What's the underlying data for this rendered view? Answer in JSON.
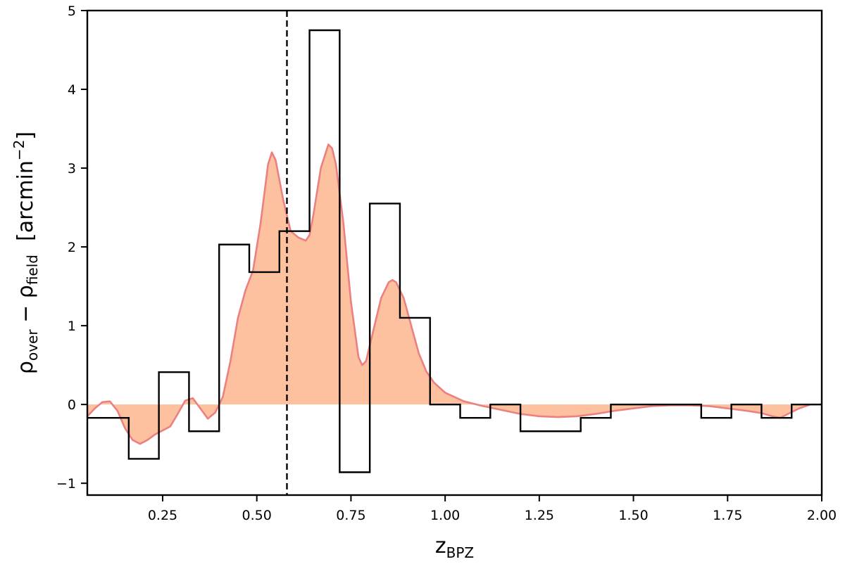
{
  "chart_data": {
    "type": "histogram",
    "xlabel": {
      "main": "z",
      "sub": "BPZ"
    },
    "ylabel": {
      "main1": "ρ",
      "sub1": "over",
      "op": " − ",
      "main2": "ρ",
      "sub2": "field",
      "unit_pre": "  [arcmin",
      "unit_sup": "−2",
      "unit_post": "]"
    },
    "xlim": [
      0.05,
      2.0
    ],
    "ylim": [
      -1.15,
      5.0
    ],
    "xticks": [
      0.25,
      0.5,
      0.75,
      1.0,
      1.25,
      1.5,
      1.75,
      2.0
    ],
    "xtick_labels": [
      "0.25",
      "0.50",
      "0.75",
      "1.00",
      "1.25",
      "1.50",
      "1.75",
      "2.00"
    ],
    "yticks": [
      -1,
      0,
      1,
      2,
      3,
      4,
      5
    ],
    "ytick_labels": [
      "−1",
      "0",
      "1",
      "2",
      "3",
      "4",
      "5"
    ],
    "vline": {
      "x": 0.58,
      "style": "dashed",
      "color": "#000000"
    },
    "histogram": {
      "name": "",
      "color": "#000000",
      "bin_edges": [
        0.04,
        0.12,
        0.16,
        0.24,
        0.32,
        0.4,
        0.48,
        0.56,
        0.64,
        0.72,
        0.8,
        0.88,
        0.96,
        1.04,
        1.12,
        1.2,
        1.28,
        1.36,
        1.44,
        1.52,
        1.6,
        1.68,
        1.76,
        1.84,
        1.92,
        2.0
      ],
      "values": [
        -0.17,
        -0.17,
        -0.69,
        0.41,
        -0.34,
        2.03,
        1.68,
        2.2,
        4.75,
        -0.86,
        2.55,
        1.1,
        0.0,
        -0.17,
        0.0,
        -0.34,
        -0.34,
        -0.17,
        0.0,
        0.0,
        0.0,
        -0.17,
        0.0,
        -0.17,
        0.0
      ]
    },
    "kde": {
      "name": "",
      "fill_color": "#FDC19F",
      "line_color": "#EC8080",
      "x": [
        0.05,
        0.07,
        0.09,
        0.11,
        0.13,
        0.15,
        0.17,
        0.19,
        0.21,
        0.23,
        0.25,
        0.27,
        0.29,
        0.31,
        0.33,
        0.35,
        0.37,
        0.39,
        0.41,
        0.43,
        0.45,
        0.47,
        0.49,
        0.51,
        0.53,
        0.54,
        0.55,
        0.57,
        0.59,
        0.61,
        0.63,
        0.64,
        0.65,
        0.67,
        0.69,
        0.7,
        0.71,
        0.73,
        0.75,
        0.77,
        0.78,
        0.79,
        0.81,
        0.83,
        0.85,
        0.86,
        0.87,
        0.89,
        0.91,
        0.93,
        0.95,
        0.97,
        1.0,
        1.05,
        1.1,
        1.15,
        1.2,
        1.25,
        1.3,
        1.35,
        1.4,
        1.45,
        1.5,
        1.55,
        1.6,
        1.65,
        1.7,
        1.75,
        1.8,
        1.84,
        1.87,
        1.89,
        1.91,
        1.94,
        1.97,
        2.0
      ],
      "y": [
        -0.15,
        -0.05,
        0.03,
        0.04,
        -0.08,
        -0.3,
        -0.45,
        -0.5,
        -0.45,
        -0.38,
        -0.33,
        -0.28,
        -0.12,
        0.05,
        0.08,
        -0.05,
        -0.18,
        -0.1,
        0.1,
        0.55,
        1.1,
        1.45,
        1.7,
        2.3,
        3.05,
        3.2,
        3.1,
        2.6,
        2.2,
        2.12,
        2.08,
        2.15,
        2.4,
        3.0,
        3.3,
        3.25,
        3.05,
        2.3,
        1.3,
        0.6,
        0.5,
        0.55,
        0.95,
        1.35,
        1.55,
        1.58,
        1.55,
        1.35,
        1.0,
        0.65,
        0.42,
        0.28,
        0.15,
        0.04,
        -0.02,
        -0.07,
        -0.12,
        -0.15,
        -0.16,
        -0.15,
        -0.12,
        -0.08,
        -0.05,
        -0.02,
        -0.01,
        -0.01,
        -0.02,
        -0.05,
        -0.08,
        -0.11,
        -0.15,
        -0.17,
        -0.12,
        -0.05,
        0.0,
        0.0
      ]
    }
  }
}
